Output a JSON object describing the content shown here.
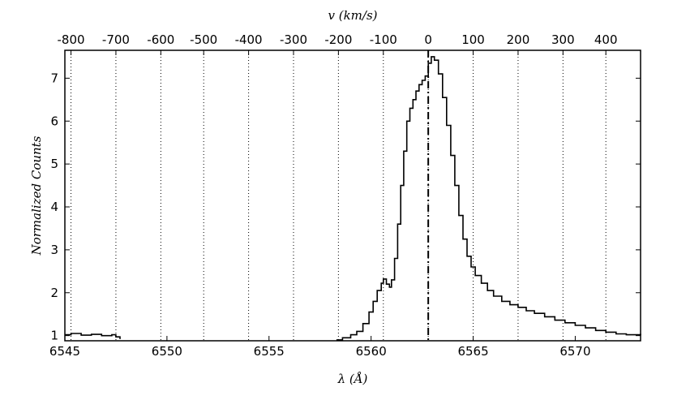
{
  "chart_data": {
    "type": "line",
    "xlabel": "λ (Å)",
    "ylabel": "Normalized Counts",
    "top_xlabel": "v (km/s)",
    "xlim": [
      6545,
      6573.2
    ],
    "ylim": [
      0.88,
      7.65
    ],
    "xticks": [
      "6545",
      "6550",
      "6555",
      "6560",
      "6565",
      "6570"
    ],
    "yticks": [
      "1",
      "2",
      "3",
      "4",
      "5",
      "6",
      "7"
    ],
    "top_ticks": [
      {
        "label": "-800",
        "wavelength": 6545.3
      },
      {
        "label": "-700",
        "wavelength": 6547.5
      },
      {
        "label": "-600",
        "wavelength": 6549.7
      },
      {
        "label": "-500",
        "wavelength": 6551.8
      },
      {
        "label": "-400",
        "wavelength": 6554.0
      },
      {
        "label": "-300",
        "wavelength": 6556.2
      },
      {
        "label": "-200",
        "wavelength": 6558.4
      },
      {
        "label": "-100",
        "wavelength": 6560.6
      },
      {
        "label": "0",
        "wavelength": 6562.8
      },
      {
        "label": "100",
        "wavelength": 6565.0
      },
      {
        "label": "200",
        "wavelength": 6567.2
      },
      {
        "label": "300",
        "wavelength": 6569.4
      },
      {
        "label": "400",
        "wavelength": 6571.5
      }
    ],
    "rest_wavelength": 6562.8,
    "grid": "dotted vertical lines at velocity ticks",
    "series": [
      {
        "segments": [
          {
            "x": [
              6545.0,
              6545.3,
              6545.8,
              6546.3,
              6546.8,
              6547.3,
              6547.5,
              6547.7
            ],
            "y": [
              1.02,
              1.05,
              1.01,
              1.03,
              1.0,
              1.02,
              0.97,
              0.92
            ]
          },
          {
            "x": [
              6558.3,
              6558.6,
              6559.0,
              6559.3,
              6559.6,
              6559.9,
              6560.1,
              6560.3,
              6560.5,
              6560.6,
              6560.75,
              6560.9,
              6561.0,
              6561.15,
              6561.3,
              6561.45,
              6561.6,
              6561.75,
              6561.9,
              6562.05,
              6562.2,
              6562.35,
              6562.5,
              6562.65,
              6562.8,
              6562.95,
              6563.1,
              6563.3,
              6563.5,
              6563.7,
              6563.9,
              6564.1,
              6564.3,
              6564.5,
              6564.7,
              6564.9,
              6565.1,
              6565.4,
              6565.7,
              6566.0,
              6566.4,
              6566.8,
              6567.2,
              6567.6,
              6568.0,
              6568.5,
              6569.0,
              6569.5,
              6570.0,
              6570.5,
              6571.0,
              6571.5,
              6572.0,
              6572.5,
              6573.2
            ],
            "y": [
              0.9,
              0.95,
              1.02,
              1.1,
              1.28,
              1.55,
              1.8,
              2.05,
              2.22,
              2.32,
              2.2,
              2.13,
              2.3,
              2.8,
              3.6,
              4.5,
              5.3,
              6.0,
              6.3,
              6.5,
              6.7,
              6.85,
              6.95,
              7.05,
              7.35,
              7.5,
              7.42,
              7.1,
              6.55,
              5.9,
              5.2,
              4.5,
              3.8,
              3.25,
              2.85,
              2.6,
              2.4,
              2.22,
              2.05,
              1.92,
              1.8,
              1.72,
              1.66,
              1.58,
              1.52,
              1.44,
              1.36,
              1.3,
              1.24,
              1.18,
              1.12,
              1.08,
              1.04,
              1.02,
              1.04
            ]
          }
        ]
      }
    ]
  }
}
